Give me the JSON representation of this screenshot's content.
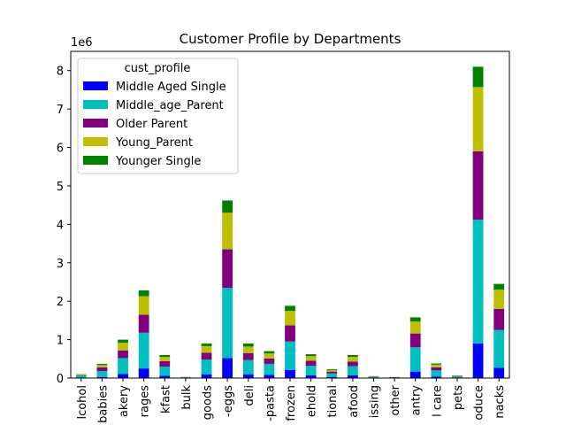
{
  "chart_data": {
    "type": "stacked_bar",
    "title": "Customer Profile by Departments",
    "y_offset_label": "1e6",
    "legend_title": "cust_profile",
    "legend_position": "upper-left",
    "categories": [
      "lcohol",
      "babies",
      "akery",
      "rages",
      "kfast",
      "bulk",
      "goods",
      "-eggs",
      "deli",
      "-pasta",
      "frozen",
      "ehold",
      "tional",
      "afood",
      "issing",
      "other",
      "antry",
      "l care",
      "pets",
      "oduce",
      "nacks"
    ],
    "ylim": [
      0,
      8.5
    ],
    "yticks": [
      0,
      1,
      2,
      3,
      4,
      5,
      6,
      7,
      8
    ],
    "series": [
      {
        "name": "Middle Aged Single",
        "color": "#0000ff",
        "values": [
          0.01,
          0.03,
          0.11,
          0.25,
          0.06,
          0.003,
          0.1,
          0.52,
          0.1,
          0.08,
          0.21,
          0.07,
          0.03,
          0.07,
          0.006,
          0.004,
          0.17,
          0.04,
          0.01,
          0.9,
          0.27
        ]
      },
      {
        "name": "Middle_age_Parent",
        "color": "#00bfbf",
        "values": [
          0.05,
          0.15,
          0.41,
          0.93,
          0.24,
          0.012,
          0.38,
          1.83,
          0.37,
          0.29,
          0.74,
          0.25,
          0.09,
          0.24,
          0.02,
          0.013,
          0.63,
          0.16,
          0.03,
          3.22,
          0.98
        ]
      },
      {
        "name": "Older Parent",
        "color": "#800080",
        "values": [
          0.01,
          0.1,
          0.2,
          0.47,
          0.14,
          0.006,
          0.18,
          1.0,
          0.18,
          0.14,
          0.42,
          0.13,
          0.05,
          0.12,
          0.01,
          0.006,
          0.36,
          0.08,
          0.015,
          1.78,
          0.55
        ]
      },
      {
        "name": "Young_Parent",
        "color": "#bfbf00",
        "values": [
          0.02,
          0.06,
          0.2,
          0.48,
          0.11,
          0.006,
          0.17,
          0.95,
          0.17,
          0.13,
          0.38,
          0.12,
          0.04,
          0.12,
          0.01,
          0.005,
          0.31,
          0.07,
          0.01,
          1.67,
          0.5
        ]
      },
      {
        "name": "Younger Single",
        "color": "#008000",
        "values": [
          0.01,
          0.03,
          0.08,
          0.15,
          0.05,
          0.003,
          0.07,
          0.32,
          0.08,
          0.06,
          0.13,
          0.05,
          0.02,
          0.05,
          0.004,
          0.002,
          0.11,
          0.03,
          0.005,
          0.53,
          0.15
        ]
      }
    ]
  }
}
